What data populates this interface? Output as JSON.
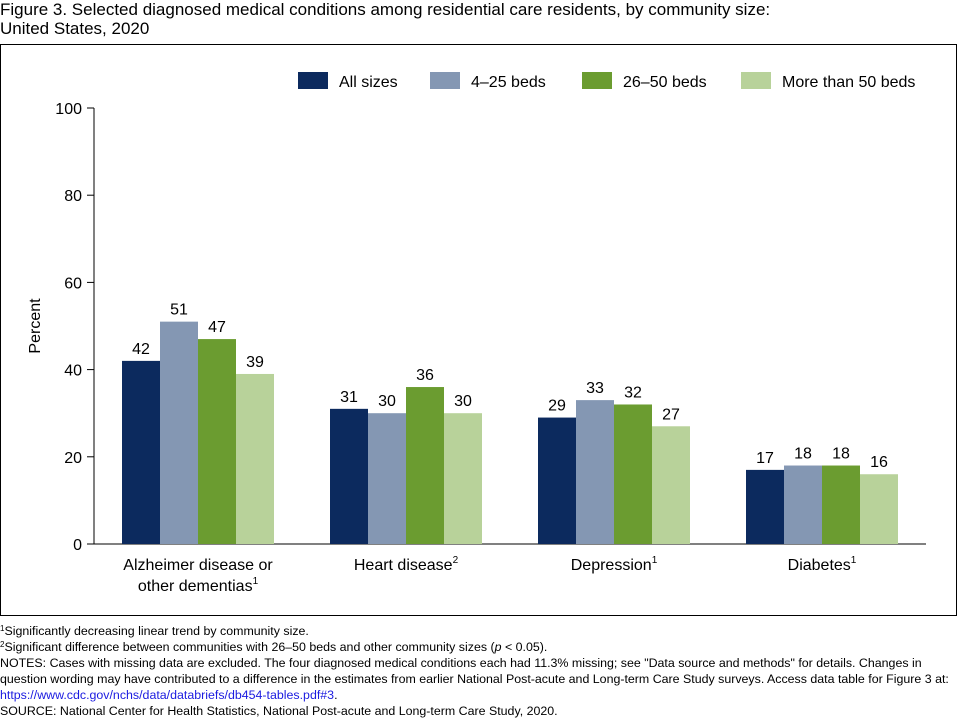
{
  "figure": {
    "title_line1": "Figure 3. Selected diagnosed medical conditions among residential care residents, by community size:",
    "title_line2": "United States, 2020"
  },
  "chart_data": {
    "type": "bar",
    "categories": [
      "Alzheimer disease or other dementias",
      "Heart disease",
      "Depression",
      "Diabetes"
    ],
    "category_label_lines": [
      [
        "Alzheimer disease or",
        "other dementias"
      ],
      [
        "Heart disease"
      ],
      [
        "Depression"
      ],
      [
        "Diabetes"
      ]
    ],
    "category_footnotes": [
      "1",
      "2",
      "1",
      "1"
    ],
    "series": [
      {
        "name": "All sizes",
        "color": "#0c2a5e",
        "values": [
          42,
          31,
          29,
          17
        ]
      },
      {
        "name": "4–25 beds",
        "color": "#8497b3",
        "values": [
          51,
          30,
          33,
          18
        ]
      },
      {
        "name": "26–50 beds",
        "color": "#6b9c30",
        "values": [
          47,
          36,
          32,
          18
        ]
      },
      {
        "name": "More than 50 beds",
        "color": "#b8d29a",
        "values": [
          39,
          30,
          27,
          16
        ]
      }
    ],
    "ylabel": "Percent",
    "xlabel": "",
    "ylim": [
      0,
      100
    ],
    "yticks": [
      0,
      20,
      40,
      60,
      80,
      100
    ],
    "data_labels": true,
    "grid": false,
    "legend_position": "top"
  },
  "notes": {
    "fn1_marker": "1",
    "fn1_text": "Significantly decreasing linear trend by community size.",
    "fn2_marker": "2",
    "fn2_before": "Significant difference between communities with 26–50 beds and other community sizes (",
    "fn2_p": "p",
    "fn2_after": " < 0.05).",
    "notes_text": "NOTES: Cases with missing data are excluded. The four diagnosed medical conditions each had 11.3% missing; see \"Data source and methods\" for details. Changes in question wording may have contributed to a difference in the estimates from earlier National Post-acute and Long-term Care Study surveys. Access data table for Figure 3 at: ",
    "notes_link": "https://www.cdc.gov/nchs/data/databriefs/db454-tables.pdf#3",
    "notes_end": ".",
    "source": "SOURCE: National Center for Health Statistics, National Post-acute and Long-term Care Study, 2020."
  }
}
